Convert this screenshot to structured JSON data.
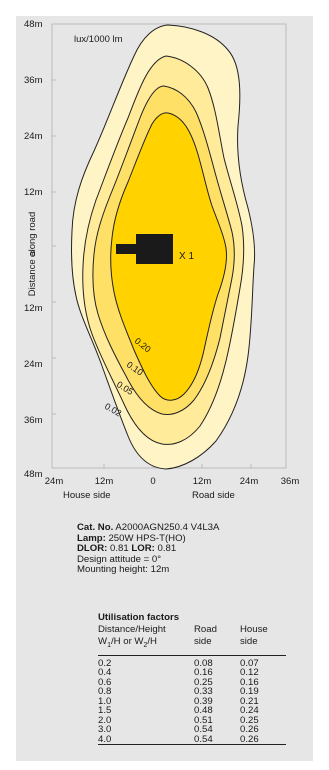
{
  "diagram": {
    "units_label": "lux/1000 lm",
    "y_axis_title": "Distance along road",
    "y_ticks": [
      "48m",
      "36m",
      "24m",
      "12m",
      "0",
      "12m",
      "24m",
      "36m",
      "48m"
    ],
    "x_ticks": [
      "24m",
      "12m",
      "0",
      "12m",
      "24m",
      "36m"
    ],
    "x_side_left": "House side",
    "x_side_right": "Road side",
    "luminaire_marker": "X 1",
    "contour_labels": [
      "0.20",
      "0.10",
      "0.05",
      "0.02"
    ],
    "colors": {
      "level_002": "#fff4c6",
      "level_005": "#ffeb99",
      "level_010": "#ffe066",
      "level_020": "#ffd200",
      "luminaire": "#1a1a1a",
      "panel": "#e6e6e6"
    }
  },
  "info": {
    "cat_label": "Cat. No.",
    "cat_value": " A2000AGN250.4 V4L3A",
    "lamp_label": "Lamp:",
    "lamp_value": " 250W HPS-T(HO)",
    "dlor_label": "DLOR:",
    "dlor_value": " 0.81 ",
    "lor_label": "LOR:",
    "lor_value": " 0.81",
    "design_attitude": "Design attitude = 0°",
    "mounting_height": "Mounting height: 12m"
  },
  "utilisation": {
    "title": "Utilisation factors",
    "headers": {
      "col1_line1": "Distance/Height",
      "col1_w1": "W",
      "col1_sub1": "1",
      "col1_mid": "/H or W",
      "col1_sub2": "2",
      "col1_end": "/H",
      "col2_line1": "Road",
      "col2_line2": "side",
      "col3_line1": "House",
      "col3_line2": "side"
    },
    "rows": [
      {
        "dh": "0.2",
        "road": "0.08",
        "house": "0.07"
      },
      {
        "dh": "0.4",
        "road": "0.16",
        "house": "0.12"
      },
      {
        "dh": "0.6",
        "road": "0.25",
        "house": "0.16"
      },
      {
        "dh": "0.8",
        "road": "0.33",
        "house": "0.19"
      },
      {
        "dh": "1.0",
        "road": "0.39",
        "house": "0.21"
      },
      {
        "dh": "1.5",
        "road": "0.48",
        "house": "0.24"
      },
      {
        "dh": "2.0",
        "road": "0.51",
        "house": "0.25"
      },
      {
        "dh": "3.0",
        "road": "0.54",
        "house": "0.26"
      },
      {
        "dh": "4.0",
        "road": "0.54",
        "house": "0.26"
      }
    ]
  }
}
